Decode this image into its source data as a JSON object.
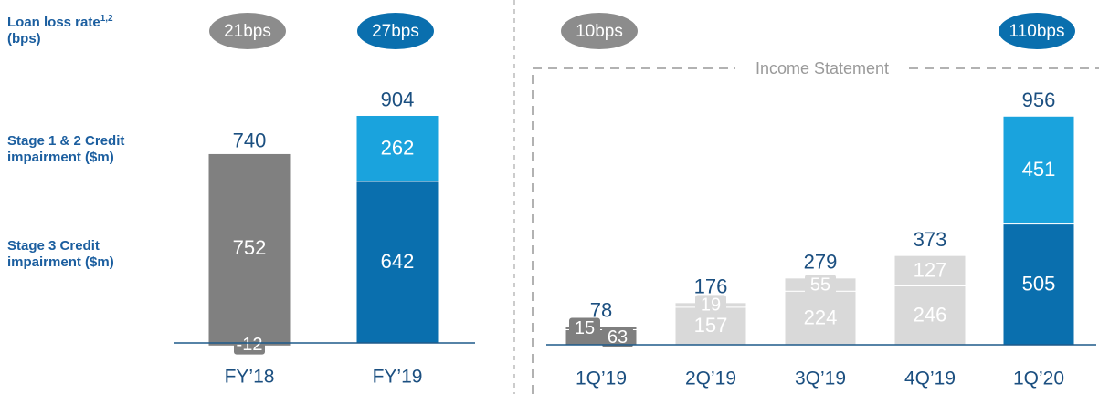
{
  "row_labels": {
    "loan_loss_rate": "Loan loss rate",
    "superscript": "1,2",
    "unit": "(bps)"
  },
  "chart_data": [
    {
      "type": "bar",
      "stacked": true,
      "categories": [
        "FY’18",
        "FY’19"
      ],
      "rates": [
        "21bps",
        "27bps"
      ],
      "rate_colors": [
        "#8c8c8c",
        "#0a6fae"
      ],
      "totals": [
        740,
        904
      ],
      "ylim": [
        0,
        1000
      ],
      "series": [
        {
          "name": "Stage 3 Credit impairment ($m)",
          "colors": [
            "#808080",
            "#0a6fae"
          ],
          "values": [
            752,
            642
          ]
        },
        {
          "name": "Stage 1 & 2 Credit impairment ($m)",
          "colors": [
            "#808080",
            "#1aa3dd"
          ],
          "values": [
            -12,
            262
          ]
        }
      ]
    },
    {
      "type": "bar",
      "stacked": true,
      "annotation": "Income Statement",
      "categories": [
        "1Q’19",
        "2Q’19",
        "3Q’19",
        "4Q’19",
        "1Q’20"
      ],
      "rates": [
        "10bps",
        null,
        null,
        null,
        "110bps"
      ],
      "rate_colors": [
        "#8c8c8c",
        null,
        null,
        null,
        "#0a6fae"
      ],
      "totals": [
        78,
        176,
        279,
        373,
        956
      ],
      "ylim": [
        0,
        1060
      ],
      "series": [
        {
          "colors": [
            "#7f7f7f",
            "#d9d9d9",
            "#d9d9d9",
            "#d9d9d9",
            "#0a6fae"
          ],
          "values": [
            63,
            157,
            224,
            246,
            505
          ]
        },
        {
          "colors": [
            "#7f7f7f",
            "#d9d9d9",
            "#d9d9d9",
            "#d9d9d9",
            "#1aa3dd"
          ],
          "values": [
            15,
            19,
            55,
            127,
            451
          ]
        }
      ]
    }
  ]
}
